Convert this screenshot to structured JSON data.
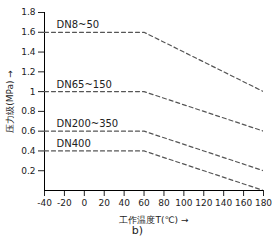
{
  "chart_data": {
    "type": "line",
    "title": "b)",
    "x_label": "工作温度T(℃)",
    "y_label": "压力级(MPa)",
    "xlim": [
      -40,
      180
    ],
    "xticks": [
      -40,
      -20,
      0,
      20,
      40,
      60,
      80,
      100,
      120,
      140,
      160,
      180
    ],
    "ylim": [
      0,
      1.8
    ],
    "yticks": [
      0.2,
      0.4,
      0.6,
      0.8,
      1.0,
      1.2,
      1.4,
      1.6,
      1.8
    ],
    "grid": false,
    "line_style": "dashed",
    "color": "#555555",
    "series": [
      {
        "name": "DN8~50",
        "x": [
          -40,
          60,
          180
        ],
        "values": [
          1.6,
          1.6,
          1.0
        ]
      },
      {
        "name": "DN65~150",
        "x": [
          -40,
          60,
          180
        ],
        "values": [
          1.0,
          1.0,
          0.6
        ]
      },
      {
        "name": "DN200~350",
        "x": [
          -40,
          60,
          180
        ],
        "values": [
          0.6,
          0.6,
          0.2
        ]
      },
      {
        "name": "DN400",
        "x": [
          -40,
          60,
          180
        ],
        "values": [
          0.4,
          0.4,
          0.0
        ]
      }
    ]
  }
}
